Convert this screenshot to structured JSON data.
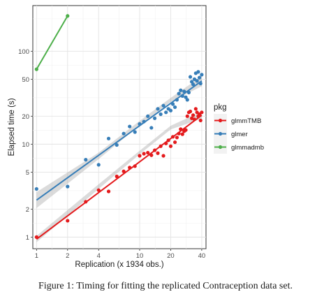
{
  "caption": "Figure 1: Timing for fitting the replicated Contraception data set.",
  "chart_data": {
    "type": "scatter",
    "xlabel": "Replication (x 1934 obs.)",
    "ylabel": "Elapsed time (s)",
    "xscale": "log",
    "yscale": "log",
    "xlim": [
      0.92,
      44
    ],
    "ylim": [
      0.75,
      310
    ],
    "xticks": [
      1,
      2,
      4,
      10,
      20,
      40
    ],
    "yticks": [
      1,
      2,
      5,
      10,
      20,
      50,
      100
    ],
    "grid": true,
    "legend": {
      "title": "pkg",
      "position": "right"
    },
    "series": [
      {
        "name": "glmmTMB",
        "color": "#e41a1c",
        "points": [
          [
            1,
            1.0
          ],
          [
            2,
            1.5
          ],
          [
            3,
            2.4
          ],
          [
            4,
            3.2
          ],
          [
            5,
            3.1
          ],
          [
            6,
            4.5
          ],
          [
            7,
            5.1
          ],
          [
            8,
            5.6
          ],
          [
            9,
            5.8
          ],
          [
            10,
            7.5
          ],
          [
            11,
            7.9
          ],
          [
            12,
            8.1
          ],
          [
            13,
            7.6
          ],
          [
            14,
            8.6
          ],
          [
            15,
            8.0
          ],
          [
            16,
            9.5
          ],
          [
            17,
            7.5
          ],
          [
            18,
            10.2
          ],
          [
            19,
            11.0
          ],
          [
            20,
            9.5
          ],
          [
            21,
            12.0
          ],
          [
            22,
            10.5
          ],
          [
            23,
            11.8
          ],
          [
            24,
            13.0
          ],
          [
            25,
            14.5
          ],
          [
            26,
            12.8
          ],
          [
            27,
            13.8
          ],
          [
            28,
            14.2
          ],
          [
            29,
            20.0
          ],
          [
            30,
            22.0
          ],
          [
            31,
            22.5
          ],
          [
            32,
            19.0
          ],
          [
            33,
            20.5
          ],
          [
            34,
            18.5
          ],
          [
            35,
            24.0
          ],
          [
            36,
            22.0
          ],
          [
            37,
            20.0
          ],
          [
            38,
            21.0
          ],
          [
            39,
            18.0
          ],
          [
            40,
            22.0
          ]
        ],
        "fit": [
          [
            1,
            0.95
          ],
          [
            40,
            20.5
          ]
        ],
        "ci_lower": [
          [
            1,
            0.88
          ],
          [
            4,
            3.3
          ],
          [
            10,
            7.8
          ],
          [
            20,
            14.4
          ],
          [
            40,
            18.8
          ]
        ],
        "ci_upper": [
          [
            1,
            1.03
          ],
          [
            4,
            3.7
          ],
          [
            10,
            8.5
          ],
          [
            20,
            15.8
          ],
          [
            40,
            22.4
          ]
        ]
      },
      {
        "name": "glmer",
        "color": "#377eb8",
        "points": [
          [
            1,
            3.3
          ],
          [
            2,
            3.5
          ],
          [
            3,
            6.8
          ],
          [
            4,
            6.0
          ],
          [
            5,
            11.5
          ],
          [
            6,
            9.8
          ],
          [
            7,
            13.0
          ],
          [
            8,
            15.5
          ],
          [
            9,
            13.5
          ],
          [
            10,
            16.5
          ],
          [
            11,
            17.5
          ],
          [
            12,
            20.0
          ],
          [
            13,
            15.0
          ],
          [
            14,
            19.0
          ],
          [
            15,
            24.0
          ],
          [
            16,
            21.0
          ],
          [
            17,
            26.0
          ],
          [
            18,
            22.0
          ],
          [
            19,
            24.0
          ],
          [
            20,
            23.0
          ],
          [
            21,
            27.0
          ],
          [
            22,
            25.0
          ],
          [
            23,
            30.0
          ],
          [
            24,
            35.0
          ],
          [
            25,
            38.0
          ],
          [
            26,
            33.0
          ],
          [
            27,
            37.0
          ],
          [
            28,
            32.0
          ],
          [
            29,
            30.0
          ],
          [
            30,
            36.0
          ],
          [
            31,
            53.0
          ],
          [
            32,
            47.0
          ],
          [
            33,
            44.0
          ],
          [
            34,
            50.0
          ],
          [
            35,
            58.0
          ],
          [
            36,
            48.0
          ],
          [
            37,
            60.0
          ],
          [
            38,
            52.0
          ],
          [
            39,
            45.0
          ],
          [
            40,
            56.0
          ]
        ],
        "fit": [
          [
            1,
            2.5
          ],
          [
            40,
            48.0
          ]
        ],
        "ci_lower": [
          [
            1,
            2.05
          ],
          [
            4,
            6.9
          ],
          [
            10,
            16.0
          ],
          [
            20,
            28.5
          ],
          [
            40,
            42.0
          ]
        ],
        "ci_upper": [
          [
            1,
            3.05
          ],
          [
            4,
            8.1
          ],
          [
            10,
            17.8
          ],
          [
            20,
            31.5
          ],
          [
            40,
            54.0
          ]
        ]
      },
      {
        "name": "glmmadmb",
        "color": "#4daf4a",
        "points": [
          [
            1,
            64.0
          ],
          [
            2,
            240.0
          ]
        ],
        "line": [
          [
            1,
            64.0
          ],
          [
            2,
            240.0
          ]
        ]
      }
    ]
  }
}
